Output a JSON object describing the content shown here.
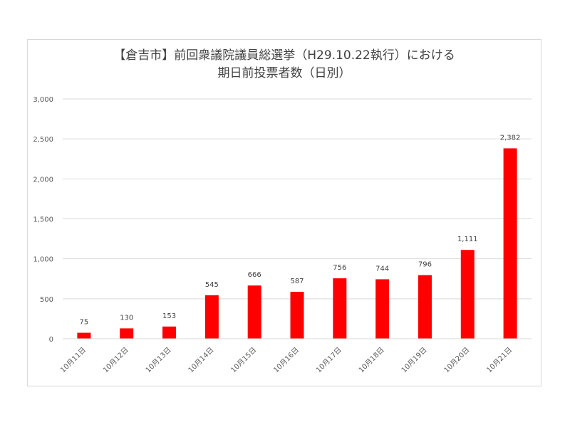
{
  "chart_data": {
    "type": "bar",
    "title_lines": [
      "【倉吉市】前回衆議院議員総選挙（H29.10.22執行）における",
      "期日前投票者数（日別）"
    ],
    "categories": [
      "10月11日",
      "10月12日",
      "10月13日",
      "10月14日",
      "10月15日",
      "10月16日",
      "10月17日",
      "10月18日",
      "10月19日",
      "10月20日",
      "10月21日"
    ],
    "values": [
      75,
      130,
      153,
      545,
      666,
      587,
      756,
      744,
      796,
      1111,
      2382
    ],
    "data_labels": [
      "75",
      "130",
      "153",
      "545",
      "666",
      "587",
      "756",
      "744",
      "796",
      "1,111",
      "2,382"
    ],
    "ylim": [
      0,
      3000
    ],
    "y_ticks": [
      0,
      500,
      1000,
      1500,
      2000,
      2500,
      3000
    ],
    "y_tick_labels": [
      "0",
      "500",
      "1,000",
      "1,500",
      "2,000",
      "2,500",
      "3,000"
    ],
    "grid": true,
    "legend": "none",
    "bar_color": "#ff0000",
    "gridline_color": "#d9d9d9"
  }
}
